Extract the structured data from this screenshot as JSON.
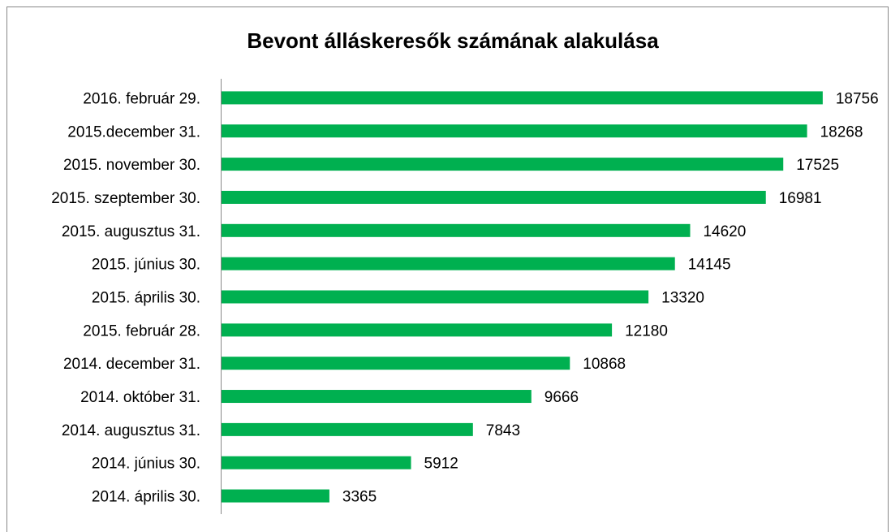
{
  "chart_data": {
    "type": "bar",
    "orientation": "horizontal",
    "title": "Bevont álláskeresők számának alakulása",
    "categories": [
      "2016. február 29.",
      "2015.december 31.",
      "2015. november 30.",
      "2015. szeptember 30.",
      "2015. augusztus 31.",
      "2015. június 30.",
      "2015. április 30.",
      "2015. február 28.",
      "2014. december 31.",
      "2014. október 31.",
      "2014. augusztus 31.",
      "2014. június 30.",
      "2014. április 30."
    ],
    "values": [
      18756,
      18268,
      17525,
      16981,
      14620,
      14145,
      13320,
      12180,
      10868,
      9666,
      7843,
      5912,
      3365
    ],
    "color": "#00b050",
    "xlim": [
      0,
      20000
    ]
  }
}
